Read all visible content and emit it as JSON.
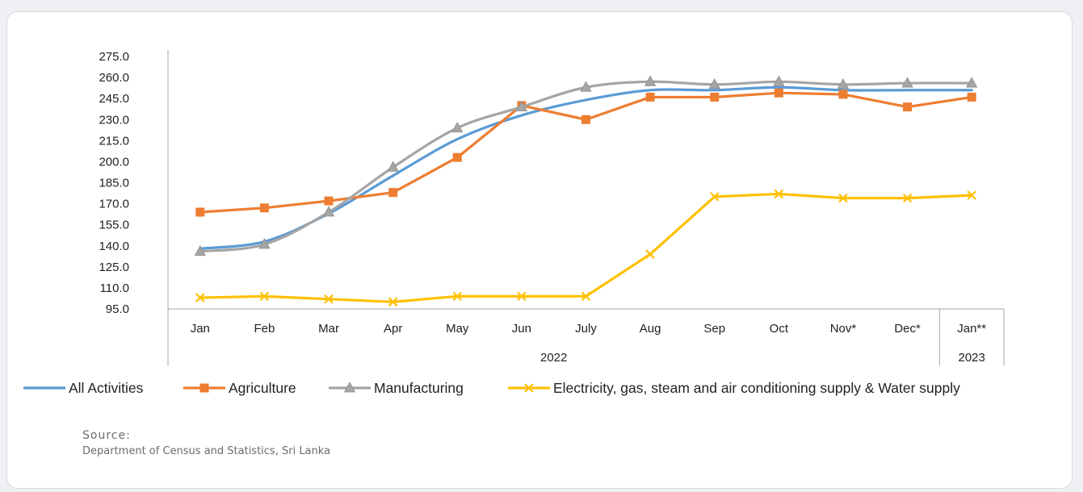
{
  "chart_data": {
    "type": "line",
    "categories": [
      "Jan",
      "Feb",
      "Mar",
      "Apr",
      "May",
      "Jun",
      "July",
      "Aug",
      "Sep",
      "Oct",
      "Nov*",
      "Dec*",
      "Jan**"
    ],
    "groups": [
      {
        "label": "2022",
        "count": 12
      },
      {
        "label": "2023",
        "count": 1
      }
    ],
    "ylim": [
      95,
      275
    ],
    "yticks": [
      "95.0",
      "110.0",
      "125.0",
      "140.0",
      "155.0",
      "170.0",
      "185.0",
      "200.0",
      "215.0",
      "230.0",
      "245.0",
      "260.0",
      "275.0"
    ],
    "series": [
      {
        "name": "All Activities",
        "color": "#5b9bd5",
        "marker": "none",
        "smooth": true,
        "values": [
          138,
          143,
          163,
          190,
          216,
          233,
          244,
          251,
          251,
          253,
          251,
          251,
          251
        ]
      },
      {
        "name": "Agriculture",
        "color": "#ed7d31",
        "marker": "square",
        "smooth": false,
        "values": [
          164,
          167,
          172,
          178,
          203,
          240,
          230,
          246,
          246,
          249,
          248,
          239,
          246
        ]
      },
      {
        "name": "Manufacturing",
        "color": "#a5a5a5",
        "marker": "triangle",
        "smooth": true,
        "values": [
          136,
          141,
          164,
          196,
          224,
          239,
          253,
          257,
          255,
          257,
          255,
          256,
          256
        ]
      },
      {
        "name": "Electricity, gas, steam and air conditioning supply & Water supply",
        "color": "#ffc000",
        "marker": "x",
        "smooth": false,
        "values": [
          103,
          104,
          102,
          100,
          104,
          104,
          104,
          134,
          175,
          177,
          174,
          174,
          176
        ]
      }
    ],
    "grid": false,
    "legend": "bottom"
  },
  "source": {
    "label": "Source:",
    "text": "Department of Census and Statistics, Sri Lanka"
  }
}
